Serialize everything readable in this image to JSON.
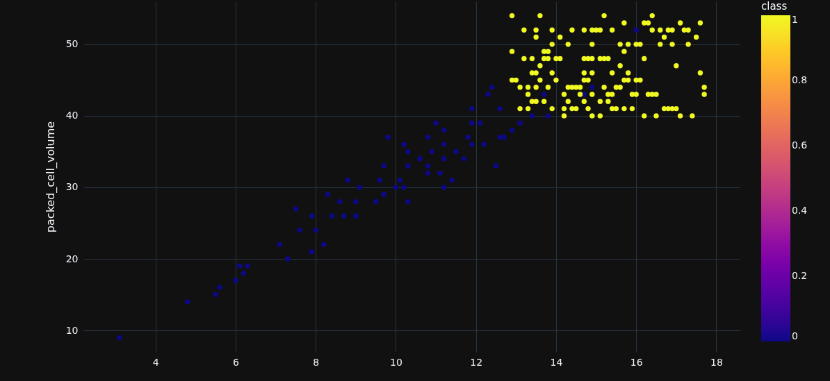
{
  "chart_data": {
    "type": "scatter",
    "ylabel": "packed_cell_volume",
    "clabel": "class",
    "clim": [
      0,
      1
    ],
    "cticks": [
      0,
      0.2,
      0.4,
      0.6,
      0.8,
      1
    ],
    "xlim": [
      2.2,
      18.6
    ],
    "ylim": [
      7,
      56
    ],
    "xticks": [
      4,
      6,
      8,
      10,
      12,
      14,
      16,
      18
    ],
    "yticks": [
      10,
      20,
      30,
      40,
      50
    ],
    "grid": true,
    "marker": "circle",
    "x": [
      3.1,
      4.8,
      5.5,
      5.6,
      6.0,
      6.1,
      6.2,
      6.3,
      7.1,
      7.3,
      7.5,
      7.6,
      7.9,
      7.9,
      8.0,
      8.2,
      8.3,
      8.4,
      8.6,
      8.7,
      8.8,
      9.0,
      9.0,
      9.1,
      9.5,
      9.6,
      9.7,
      9.7,
      9.8,
      10.0,
      10.1,
      10.2,
      10.3,
      10.2,
      10.3,
      10.3,
      10.6,
      10.8,
      10.8,
      10.8,
      10.9,
      11.0,
      11.1,
      11.2,
      11.2,
      11.2,
      11.2,
      11.4,
      11.5,
      11.7,
      11.8,
      11.9,
      11.9,
      11.9,
      12.2,
      12.1,
      12.3,
      12.4,
      12.5,
      12.6,
      12.6,
      12.7,
      12.9,
      13.1,
      13.4,
      13.7,
      13.8,
      14.7,
      14.9,
      16.0,
      12.9,
      13.6,
      15.2,
      16.4,
      15.7,
      16.2,
      16.3,
      17.1,
      17.6,
      13.2,
      13.5,
      13.9,
      14.4,
      14.7,
      14.9,
      15.0,
      15.1,
      15.4,
      16.4,
      16.6,
      16.8,
      16.9,
      17.2,
      17.3,
      13.5,
      14.1,
      16.7,
      17.5,
      13.9,
      14.3,
      14.9,
      15.6,
      15.8,
      16.0,
      16.1,
      16.6,
      16.9,
      17.3,
      12.9,
      13.7,
      13.8,
      15.7,
      13.2,
      13.4,
      13.7,
      13.8,
      14.0,
      14.1,
      14.7,
      14.8,
      14.9,
      15.1,
      15.2,
      15.3,
      16.2,
      13.6,
      15.6,
      17.0,
      13.4,
      13.5,
      13.9,
      14.7,
      14.9,
      15.4,
      15.8,
      17.6,
      12.9,
      13.0,
      13.6,
      14.0,
      14.7,
      14.8,
      15.7,
      15.8,
      16.0,
      16.1,
      13.1,
      13.3,
      13.5,
      13.8,
      14.3,
      14.4,
      14.5,
      14.6,
      15.2,
      15.5,
      15.6,
      17.7,
      13.3,
      14.2,
      14.6,
      14.9,
      15.3,
      15.4,
      15.9,
      16.0,
      16.3,
      16.4,
      16.5,
      17.7,
      13.4,
      13.5,
      13.7,
      14.3,
      14.7,
      15.1,
      15.3,
      13.1,
      13.3,
      13.9,
      14.2,
      14.4,
      14.5,
      14.8,
      15.4,
      15.5,
      15.7,
      15.9,
      16.7,
      16.8,
      16.9,
      17.0,
      14.2,
      14.9,
      15.1,
      16.2,
      16.5,
      17.1,
      17.4
    ],
    "values": [
      9,
      14,
      15,
      16,
      17,
      19,
      18,
      19,
      22,
      20,
      27,
      24,
      26,
      21,
      24,
      22,
      29,
      26,
      28,
      26,
      31,
      26,
      28,
      30,
      28,
      31,
      29,
      33,
      37,
      30,
      31,
      30,
      28,
      36,
      35,
      33,
      34,
      37,
      32,
      33,
      35,
      39,
      32,
      30,
      38,
      36,
      34,
      31,
      35,
      34,
      37,
      36,
      39,
      41,
      36,
      39,
      43,
      44,
      33,
      37,
      41,
      37,
      38,
      39,
      40,
      43,
      40,
      43,
      44,
      52,
      54,
      54,
      54,
      54,
      53,
      53,
      53,
      53,
      53,
      52,
      52,
      52,
      52,
      52,
      52,
      52,
      52,
      52,
      52,
      52,
      52,
      52,
      52,
      52,
      51,
      51,
      51,
      51,
      50,
      50,
      50,
      50,
      50,
      50,
      50,
      50,
      50,
      50,
      49,
      49,
      49,
      49,
      48,
      48,
      48,
      48,
      48,
      48,
      48,
      48,
      48,
      48,
      48,
      48,
      48,
      47,
      47,
      47,
      46,
      46,
      46,
      46,
      46,
      46,
      46,
      46,
      45,
      45,
      45,
      45,
      45,
      45,
      45,
      45,
      45,
      45,
      44,
      44,
      44,
      44,
      44,
      44,
      44,
      44,
      44,
      44,
      44,
      44,
      43,
      43,
      43,
      43,
      43,
      43,
      43,
      43,
      43,
      43,
      43,
      43,
      42,
      42,
      42,
      42,
      42,
      42,
      42,
      41,
      41,
      41,
      41,
      41,
      41,
      41,
      41,
      41,
      41,
      41,
      41,
      41,
      41,
      41,
      40,
      40,
      40,
      40,
      40,
      40,
      40
    ],
    "cvalues": [
      0,
      0,
      0,
      0,
      0,
      0,
      0,
      0,
      0,
      0,
      0,
      0,
      0,
      0,
      0,
      0,
      0,
      0,
      0,
      0,
      0,
      0,
      0,
      0,
      0,
      0,
      0,
      0,
      0,
      0,
      0,
      0,
      0,
      0,
      0,
      0,
      0,
      0,
      0,
      0,
      0,
      0,
      0,
      0,
      0,
      0,
      0,
      0,
      0,
      0,
      0,
      0,
      0,
      0,
      0,
      0,
      0,
      0,
      0,
      0,
      0,
      0,
      0,
      0,
      0,
      0,
      0,
      0,
      0,
      0,
      1,
      1,
      1,
      1,
      1,
      1,
      1,
      1,
      1,
      1,
      1,
      1,
      1,
      1,
      1,
      1,
      1,
      1,
      1,
      1,
      1,
      1,
      1,
      1,
      1,
      1,
      1,
      1,
      1,
      1,
      1,
      1,
      1,
      1,
      1,
      1,
      1,
      1,
      1,
      1,
      1,
      1,
      1,
      1,
      1,
      1,
      1,
      1,
      1,
      1,
      1,
      1,
      1,
      1,
      1,
      1,
      1,
      1,
      1,
      1,
      1,
      1,
      1,
      1,
      1,
      1,
      1,
      1,
      1,
      1,
      1,
      1,
      1,
      1,
      1,
      1,
      1,
      1,
      1,
      1,
      1,
      1,
      1,
      1,
      1,
      1,
      1,
      1,
      1,
      1,
      1,
      1,
      1,
      1,
      1,
      1,
      1,
      1,
      1,
      1,
      1,
      1,
      1,
      1,
      1,
      1,
      1,
      1,
      1,
      1,
      1,
      1,
      1,
      1,
      1,
      1,
      1,
      1,
      1,
      1,
      1,
      1,
      1,
      1,
      1,
      1,
      1,
      1,
      1
    ]
  }
}
